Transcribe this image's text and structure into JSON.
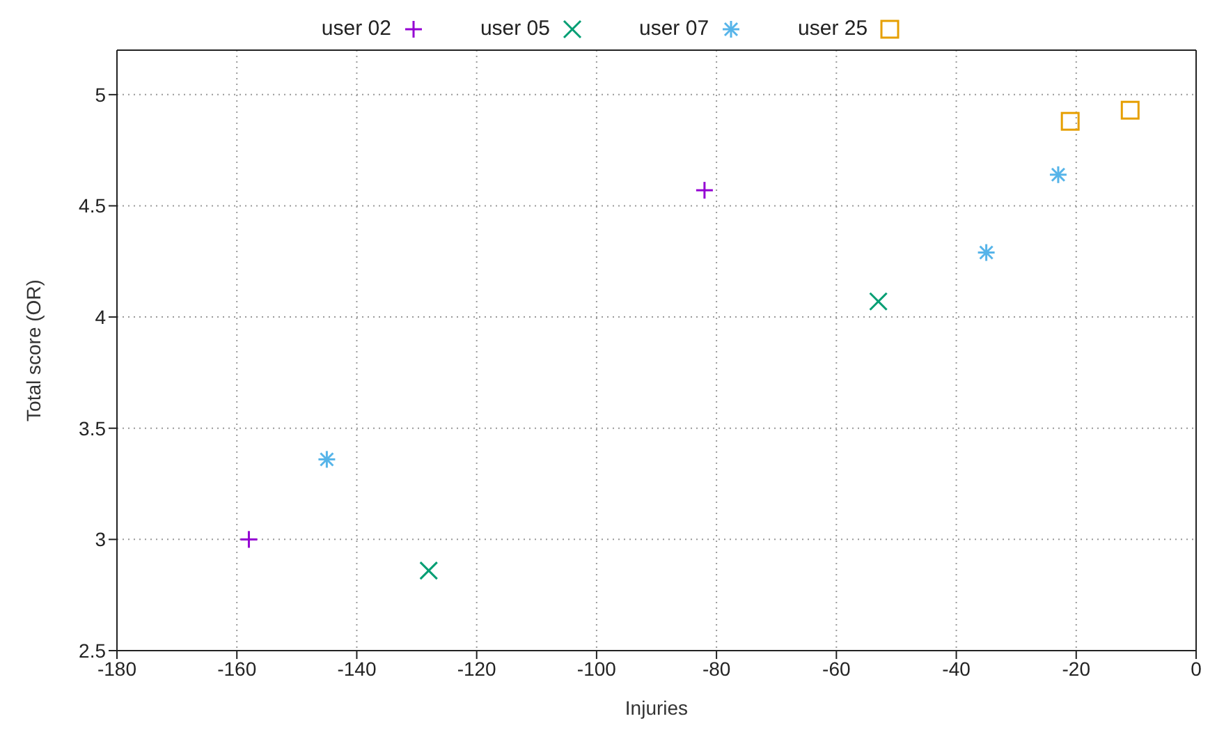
{
  "chart_data": {
    "type": "scatter",
    "xlabel": "Injuries",
    "ylabel": "Total score (OR)",
    "xlim": [
      -180,
      0
    ],
    "xticks": [
      -180,
      -160,
      -140,
      -120,
      -100,
      -80,
      -60,
      -40,
      -20,
      0
    ],
    "ylim": [
      2.5,
      5.2
    ],
    "yticks": [
      2.5,
      3,
      3.5,
      4,
      4.5,
      5
    ],
    "grid": true,
    "legend": "top",
    "series": [
      {
        "name": "user 02",
        "color": "#9400d3",
        "marker": "plus",
        "x": [
          -158,
          -82
        ],
        "values": [
          3.0,
          4.57
        ]
      },
      {
        "name": "user 05",
        "color": "#009e73",
        "marker": "cross",
        "x": [
          -128,
          -53
        ],
        "values": [
          2.86,
          4.07
        ]
      },
      {
        "name": "user 07",
        "color": "#56b4e9",
        "x": [
          -145,
          -35,
          -23
        ],
        "values": [
          3.36,
          4.29,
          4.64
        ]
      },
      {
        "name": "user 25",
        "color": "#e69f00",
        "marker": "square",
        "x": [
          -21,
          -11
        ],
        "values": [
          4.88,
          4.93
        ]
      }
    ]
  }
}
